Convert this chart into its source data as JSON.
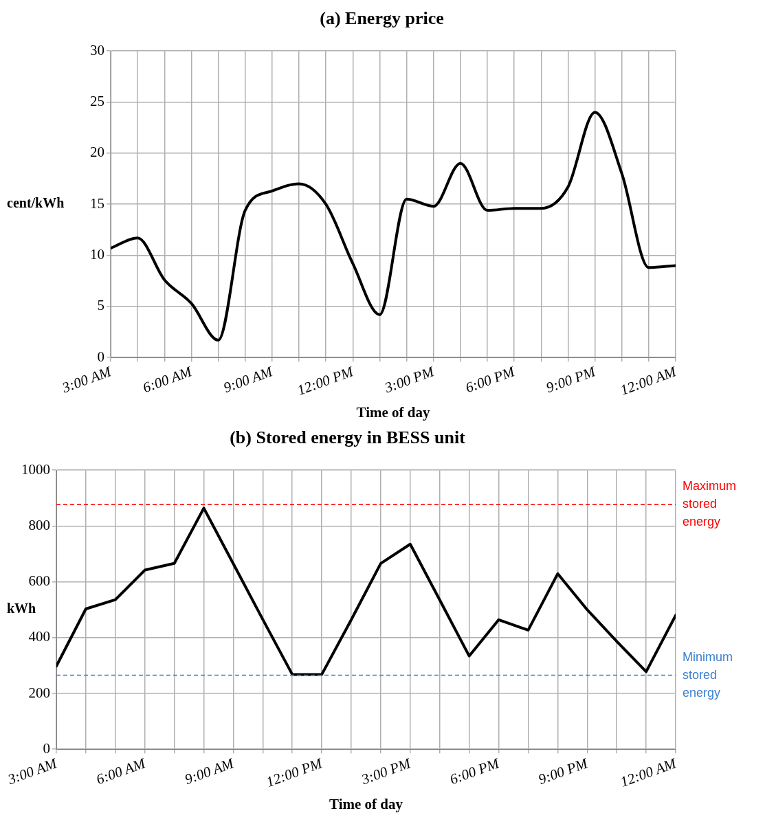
{
  "chart_data": [
    {
      "type": "line",
      "title": "(a) Energy price",
      "xlabel": "Time of day",
      "ylabel": "cent/kWh",
      "x": [
        3,
        4,
        5,
        6,
        7,
        8,
        9,
        10,
        11,
        12,
        13,
        14,
        15,
        16,
        17,
        18,
        19,
        20,
        21,
        22,
        23,
        24
      ],
      "series": [
        {
          "color": "#000000",
          "values": [
            10.7,
            11.7,
            7.6,
            5.3,
            1.7,
            14.4,
            16.3,
            17,
            15,
            9.2,
            4.2,
            15.5,
            14.8,
            19,
            14.4,
            14.6,
            14.6,
            16.7,
            24,
            18,
            8.8,
            9
          ]
        }
      ],
      "xlim": [
        3,
        24
      ],
      "xticks": [
        {
          "value": 3,
          "label": "3:00 AM"
        },
        {
          "value": 4,
          "label": null
        },
        {
          "value": 5,
          "label": null
        },
        {
          "value": 6,
          "label": "6:00 AM"
        },
        {
          "value": 7,
          "label": null
        },
        {
          "value": 8,
          "label": null
        },
        {
          "value": 9,
          "label": "9:00 AM"
        },
        {
          "value": 10,
          "label": null
        },
        {
          "value": 11,
          "label": null
        },
        {
          "value": 12,
          "label": "12:00 PM"
        },
        {
          "value": 13,
          "label": null
        },
        {
          "value": 14,
          "label": null
        },
        {
          "value": 15,
          "label": "3:00 PM"
        },
        {
          "value": 16,
          "label": null
        },
        {
          "value": 17,
          "label": null
        },
        {
          "value": 18,
          "label": "6:00 PM"
        },
        {
          "value": 19,
          "label": null
        },
        {
          "value": 20,
          "label": null
        },
        {
          "value": 21,
          "label": "9:00 PM"
        },
        {
          "value": 22,
          "label": null
        },
        {
          "value": 23,
          "label": null
        },
        {
          "value": 24,
          "label": "12:00 AM"
        }
      ],
      "ylim": [
        0,
        30
      ],
      "yticks": [
        0,
        5,
        10,
        15,
        20,
        25,
        30
      ],
      "grid": true
    },
    {
      "type": "line",
      "title": "(b) Stored energy in BESS unit",
      "xlabel": "Time of day",
      "ylabel": "kWh",
      "x": [
        3,
        4,
        5,
        6,
        7,
        8,
        9,
        10,
        11,
        12,
        13,
        14,
        15,
        16,
        17,
        18,
        19,
        20,
        21,
        22,
        23,
        24
      ],
      "series": [
        {
          "color": "#000000",
          "values": [
            298,
            503,
            536,
            642,
            666,
            864,
            665,
            465,
            268,
            268,
            464,
            666,
            735,
            535,
            334,
            464,
            427,
            629,
            500,
            387,
            278,
            480
          ]
        }
      ],
      "xlim": [
        3,
        24
      ],
      "xticks": [
        {
          "value": 3,
          "label": "3:00 AM"
        },
        {
          "value": 4,
          "label": null
        },
        {
          "value": 5,
          "label": null
        },
        {
          "value": 6,
          "label": "6:00 AM"
        },
        {
          "value": 7,
          "label": null
        },
        {
          "value": 8,
          "label": null
        },
        {
          "value": 9,
          "label": "9:00 AM"
        },
        {
          "value": 10,
          "label": null
        },
        {
          "value": 11,
          "label": null
        },
        {
          "value": 12,
          "label": "12:00 PM"
        },
        {
          "value": 13,
          "label": null
        },
        {
          "value": 14,
          "label": null
        },
        {
          "value": 15,
          "label": "3:00 PM"
        },
        {
          "value": 16,
          "label": null
        },
        {
          "value": 17,
          "label": null
        },
        {
          "value": 18,
          "label": "6:00 PM"
        },
        {
          "value": 19,
          "label": null
        },
        {
          "value": 20,
          "label": null
        },
        {
          "value": 21,
          "label": "9:00 PM"
        },
        {
          "value": 22,
          "label": null
        },
        {
          "value": 23,
          "label": null
        },
        {
          "value": 24,
          "label": "12:00 AM"
        }
      ],
      "ylim": [
        0,
        1000
      ],
      "yticks": [
        0,
        200,
        400,
        600,
        800,
        1000
      ],
      "grid": true,
      "ref_lines": [
        {
          "axis": "y",
          "value": 877,
          "label": "Maximum stored energy",
          "color": "#ff0000",
          "line_style": "dashed"
        },
        {
          "axis": "y",
          "value": 265,
          "label": "Minimum stored energy",
          "color": "#3a7fd0",
          "line_style": "dashed"
        }
      ]
    }
  ]
}
